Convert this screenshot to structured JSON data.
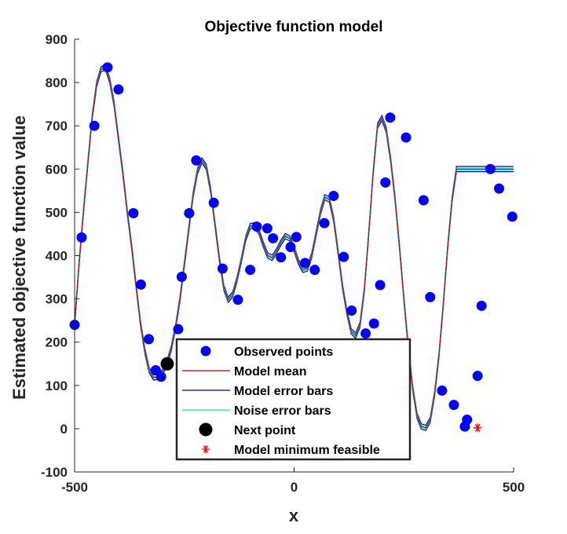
{
  "chart_data": {
    "type": "scatter",
    "title": "Objective function model",
    "xlabel": "x",
    "ylabel": "Estimated objective function value",
    "xlim": [
      -500,
      500
    ],
    "ylim": [
      -100,
      900
    ],
    "xticks": [
      -500,
      0,
      500
    ],
    "yticks": [
      -100,
      0,
      100,
      200,
      300,
      400,
      500,
      600,
      700,
      800,
      900
    ],
    "grid": false,
    "legend_position": "bottom-center",
    "series": [
      {
        "name": "Observed points",
        "kind": "markers",
        "color": "#0000ff",
        "x": [
          -500,
          -484,
          -455,
          -425,
          -400,
          -366,
          -349,
          -331,
          -315,
          -303,
          -289,
          -264,
          -256,
          -239,
          -223,
          -183,
          -163,
          -128,
          -100,
          -85,
          -61,
          -48,
          -30,
          -8,
          5,
          25,
          47,
          69,
          90,
          113,
          131,
          163,
          182,
          196,
          208,
          219,
          255,
          295,
          310,
          337,
          364,
          389,
          394,
          418,
          427,
          447,
          467,
          497
        ],
        "y": [
          240,
          442,
          700,
          835,
          784,
          498,
          333,
          207,
          135,
          120,
          150,
          230,
          351,
          498,
          620,
          522,
          370,
          298,
          367,
          467,
          463,
          440,
          396,
          420,
          443,
          383,
          367,
          475,
          538,
          397,
          273,
          220,
          243,
          332,
          569,
          719,
          673,
          528,
          304,
          88,
          55,
          5,
          21,
          122,
          284,
          600,
          555,
          490
        ]
      },
      {
        "name": "Model mean",
        "kind": "line",
        "color": "#c00000",
        "x": [
          -500,
          -490,
          -480,
          -470,
          -460,
          -450,
          -440,
          -430,
          -420,
          -410,
          -400,
          -390,
          -380,
          -370,
          -360,
          -350,
          -340,
          -330,
          -320,
          -310,
          -300,
          -290,
          -280,
          -270,
          -260,
          -250,
          -240,
          -230,
          -220,
          -210,
          -200,
          -190,
          -180,
          -170,
          -160,
          -150,
          -140,
          -130,
          -120,
          -110,
          -100,
          -90,
          -80,
          -70,
          -60,
          -50,
          -40,
          -30,
          -20,
          -10,
          0,
          10,
          20,
          30,
          40,
          50,
          60,
          70,
          80,
          90,
          100,
          110,
          120,
          130,
          140,
          150,
          160,
          170,
          180,
          190,
          200,
          210,
          220,
          230,
          240,
          250,
          260,
          270,
          280,
          290,
          300,
          310,
          320,
          330,
          340,
          350,
          360,
          370,
          380,
          390,
          400,
          410,
          420,
          430,
          440,
          450,
          460,
          470,
          480,
          490,
          500
        ],
        "y": [
          240,
          380,
          500,
          612,
          720,
          795,
          830,
          836,
          805,
          750,
          670,
          590,
          500,
          420,
          330,
          245,
          180,
          135,
          118,
          120,
          130,
          150,
          185,
          235,
          300,
          380,
          460,
          540,
          595,
          620,
          605,
          550,
          470,
          390,
          325,
          298,
          310,
          345,
          390,
          440,
          468,
          470,
          455,
          425,
          400,
          395,
          410,
          430,
          445,
          440,
          415,
          385,
          367,
          370,
          400,
          450,
          500,
          535,
          530,
          485,
          410,
          330,
          270,
          225,
          215,
          240,
          320,
          450,
          590,
          700,
          718,
          690,
          620,
          530,
          420,
          300,
          190,
          95,
          30,
          5,
          2,
          20,
          80,
          170,
          290,
          420,
          530,
          600,
          600,
          600,
          600,
          600,
          600,
          600,
          600,
          600,
          600,
          600,
          600,
          600,
          600
        ]
      },
      {
        "name": "Model error bars",
        "kind": "line",
        "color": "#00008b"
      },
      {
        "name": "Noise error bars",
        "kind": "line",
        "color": "#00e5ee"
      },
      {
        "name": "Next point",
        "kind": "marker",
        "color": "#000000",
        "x": [
          -289
        ],
        "y": [
          150
        ]
      },
      {
        "name": "Model minimum feasible",
        "kind": "marker",
        "color": "#ff0000",
        "x": [
          418
        ],
        "y": [
          2
        ]
      }
    ]
  }
}
